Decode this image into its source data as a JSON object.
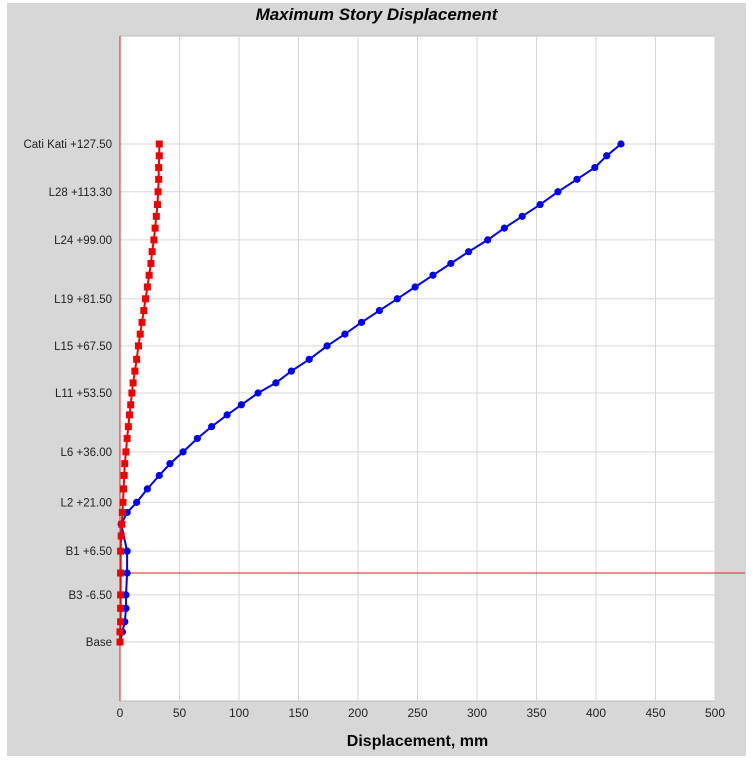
{
  "chart_data": {
    "type": "line",
    "title": "Maximum Story Displacement",
    "xlabel": "Displacement, mm",
    "ylabel": "",
    "xlim": [
      0,
      500
    ],
    "x_ticks": [
      0,
      50,
      100,
      150,
      200,
      250,
      300,
      350,
      400,
      450,
      500
    ],
    "y_ticks": [
      {
        "label": "Cati Kati +127.50",
        "elevation": 127.5
      },
      {
        "label": "L28 +113.30",
        "elevation": 113.3
      },
      {
        "label": "L24 +99.00",
        "elevation": 99.0
      },
      {
        "label": "L19 +81.50",
        "elevation": 81.5
      },
      {
        "label": "L15 +67.50",
        "elevation": 67.5
      },
      {
        "label": "L11 +53.50",
        "elevation": 53.5
      },
      {
        "label": "L6 +36.00",
        "elevation": 36.0
      },
      {
        "label": "L2 +21.00",
        "elevation": 21.0
      },
      {
        "label": "B1 +6.50",
        "elevation": 6.5
      },
      {
        "label": "B3 -6.50",
        "elevation": -6.5
      },
      {
        "label": "Base",
        "elevation": -20.5
      }
    ],
    "reference_line_elevation": 0.0,
    "grid": true,
    "series": [
      {
        "color": "#0000ee",
        "marker": "circle",
        "points": [
          {
            "x": 0,
            "y": -20.5
          },
          {
            "x": 2,
            "y": -17.5
          },
          {
            "x": 4,
            "y": -14.5
          },
          {
            "x": 5,
            "y": -10.5
          },
          {
            "x": 5,
            "y": -6.5
          },
          {
            "x": 6,
            "y": 0.0
          },
          {
            "x": 6,
            "y": 6.5
          },
          {
            "x": 1,
            "y": 14.5
          },
          {
            "x": 6,
            "y": 18.0
          },
          {
            "x": 14,
            "y": 21.0
          },
          {
            "x": 23,
            "y": 25.0
          },
          {
            "x": 33,
            "y": 29.0
          },
          {
            "x": 42,
            "y": 32.5
          },
          {
            "x": 53,
            "y": 36.0
          },
          {
            "x": 65,
            "y": 40.0
          },
          {
            "x": 77,
            "y": 43.5
          },
          {
            "x": 90,
            "y": 47.0
          },
          {
            "x": 102,
            "y": 50.0
          },
          {
            "x": 116,
            "y": 53.5
          },
          {
            "x": 131,
            "y": 56.5
          },
          {
            "x": 144,
            "y": 60.0
          },
          {
            "x": 159,
            "y": 63.5
          },
          {
            "x": 174,
            "y": 67.5
          },
          {
            "x": 189,
            "y": 71.0
          },
          {
            "x": 203,
            "y": 74.5
          },
          {
            "x": 218,
            "y": 78.0
          },
          {
            "x": 233,
            "y": 81.5
          },
          {
            "x": 248,
            "y": 85.0
          },
          {
            "x": 263,
            "y": 88.5
          },
          {
            "x": 278,
            "y": 92.0
          },
          {
            "x": 293,
            "y": 95.5
          },
          {
            "x": 309,
            "y": 99.0
          },
          {
            "x": 323,
            "y": 102.5
          },
          {
            "x": 338,
            "y": 106.0
          },
          {
            "x": 353,
            "y": 109.5
          },
          {
            "x": 368,
            "y": 113.3
          },
          {
            "x": 384,
            "y": 117.0
          },
          {
            "x": 399,
            "y": 120.5
          },
          {
            "x": 409,
            "y": 124.0
          },
          {
            "x": 421,
            "y": 127.5
          }
        ]
      },
      {
        "color": "#ee0000",
        "marker": "square",
        "points": [
          {
            "x": 0,
            "y": -20.5
          },
          {
            "x": 0,
            "y": -17.5
          },
          {
            "x": 0.5,
            "y": -14.5
          },
          {
            "x": 0.5,
            "y": -10.5
          },
          {
            "x": 0.5,
            "y": -6.5
          },
          {
            "x": 0.5,
            "y": 0.0
          },
          {
            "x": 0.5,
            "y": 6.5
          },
          {
            "x": 1,
            "y": 11.0
          },
          {
            "x": 1.5,
            "y": 14.5
          },
          {
            "x": 2,
            "y": 18.0
          },
          {
            "x": 2.5,
            "y": 21.0
          },
          {
            "x": 3,
            "y": 25.0
          },
          {
            "x": 3.5,
            "y": 29.0
          },
          {
            "x": 4,
            "y": 32.5
          },
          {
            "x": 5,
            "y": 36.0
          },
          {
            "x": 6,
            "y": 40.0
          },
          {
            "x": 7,
            "y": 43.5
          },
          {
            "x": 8,
            "y": 47.0
          },
          {
            "x": 9,
            "y": 50.0
          },
          {
            "x": 10,
            "y": 53.5
          },
          {
            "x": 11,
            "y": 56.5
          },
          {
            "x": 12.5,
            "y": 60.0
          },
          {
            "x": 14,
            "y": 63.5
          },
          {
            "x": 15.5,
            "y": 67.5
          },
          {
            "x": 17,
            "y": 71.0
          },
          {
            "x": 18.5,
            "y": 74.5
          },
          {
            "x": 20,
            "y": 78.0
          },
          {
            "x": 21.5,
            "y": 81.5
          },
          {
            "x": 23,
            "y": 85.0
          },
          {
            "x": 24.5,
            "y": 88.5
          },
          {
            "x": 26,
            "y": 92.0
          },
          {
            "x": 27,
            "y": 95.5
          },
          {
            "x": 28.5,
            "y": 99.0
          },
          {
            "x": 29.5,
            "y": 102.5
          },
          {
            "x": 30.5,
            "y": 106.0
          },
          {
            "x": 31.5,
            "y": 109.5
          },
          {
            "x": 32,
            "y": 113.3
          },
          {
            "x": 32.5,
            "y": 117.0
          },
          {
            "x": 32.5,
            "y": 120.5
          },
          {
            "x": 33,
            "y": 124.0
          },
          {
            "x": 33,
            "y": 127.5
          }
        ]
      }
    ]
  }
}
